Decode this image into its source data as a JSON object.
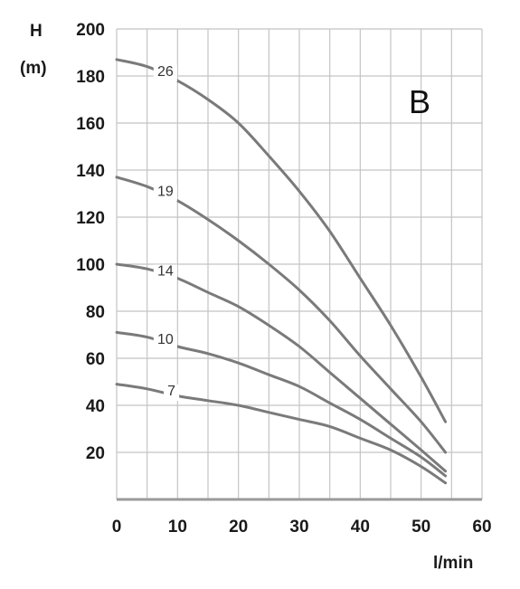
{
  "chart_data": {
    "type": "line",
    "panel_label": "B",
    "xlabel": "l/min",
    "ylabel_top": "H",
    "ylabel_unit": "(m)",
    "xlim": [
      0,
      60
    ],
    "ylim": [
      0,
      200
    ],
    "x_ticks": [
      "0",
      "10",
      "20",
      "30",
      "40",
      "50",
      "60"
    ],
    "y_ticks": [
      "20",
      "40",
      "60",
      "80",
      "100",
      "120",
      "140",
      "160",
      "180",
      "200"
    ],
    "grid": true,
    "colors": {
      "series": "#7a7a7a",
      "grid": "#c4c4c4",
      "baseline": "#9a9a9a"
    },
    "series": [
      {
        "name": "26",
        "label_x": 8,
        "x": [
          0,
          5,
          10,
          15,
          20,
          25,
          30,
          35,
          40,
          45,
          50,
          54
        ],
        "y": [
          187,
          184,
          178,
          170,
          160,
          146,
          131,
          114,
          94,
          74,
          52,
          33
        ]
      },
      {
        "name": "19",
        "label_x": 8,
        "x": [
          0,
          5,
          10,
          15,
          20,
          25,
          30,
          35,
          40,
          45,
          50,
          54
        ],
        "y": [
          137,
          133,
          127,
          119,
          110,
          100,
          89,
          76,
          61,
          47,
          33,
          20
        ]
      },
      {
        "name": "14",
        "label_x": 8,
        "x": [
          0,
          5,
          10,
          15,
          20,
          25,
          30,
          35,
          40,
          45,
          50,
          54
        ],
        "y": [
          100,
          98,
          94,
          88,
          82,
          74,
          65,
          54,
          43,
          32,
          21,
          12
        ]
      },
      {
        "name": "10",
        "label_x": 8,
        "x": [
          0,
          5,
          10,
          15,
          20,
          25,
          30,
          35,
          40,
          45,
          50,
          54
        ],
        "y": [
          71,
          69,
          65,
          62,
          58,
          53,
          48,
          41,
          34,
          26,
          18,
          10
        ]
      },
      {
        "name": "7",
        "label_x": 9,
        "x": [
          0,
          5,
          10,
          15,
          20,
          25,
          30,
          35,
          40,
          45,
          50,
          54
        ],
        "y": [
          49,
          47,
          44,
          42,
          40,
          37,
          34,
          31,
          26,
          21,
          14,
          7
        ]
      }
    ]
  }
}
